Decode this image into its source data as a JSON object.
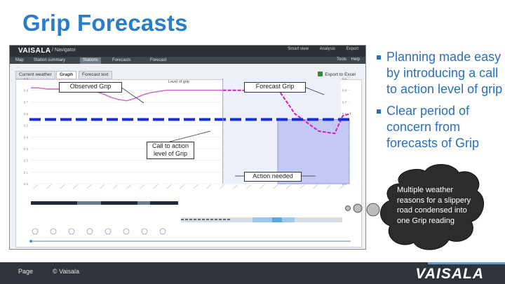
{
  "slide": {
    "title": "Grip Forecasts",
    "bullets": [
      "Planning made easy by introducing a call to action level of grip",
      "Clear period of concern from forecasts of Grip"
    ],
    "cloud_text": "Multiple weather reasons for a slippery road condensed into one Grip reading",
    "footer": {
      "page": "Page",
      "copyright": "© Vaisala",
      "logo": "VAISALA"
    }
  },
  "callouts": {
    "observed": "Observed Grip",
    "forecast": "Forecast Grip",
    "call_to_action": "Call to action level of Grip",
    "action_needed": "Action needed"
  },
  "app": {
    "logo": "VAISALA",
    "breadcrumb": "/ Navigator",
    "top_icons": [
      "Smart view",
      "Analysis",
      "Export"
    ],
    "nav_items": [
      "Map",
      "Station summary",
      "Stations",
      "Forecasts",
      "Forecast"
    ],
    "nav_active": 2,
    "nav_right": [
      "Tools",
      "Help"
    ],
    "tabs": [
      "Current weather",
      "Graph",
      "Forecast text"
    ],
    "tab_active": 1,
    "export_label": "Export to Excel",
    "chart_title": "Level of grip"
  },
  "colors": {
    "title": "#2a7dc8",
    "observed_line": "#d060c8",
    "forecast_line": "#d020b0",
    "threshold_line": "#1a2fd0",
    "action_fill": "#c4c9f4",
    "footer": "#2e343a"
  },
  "chart_data": {
    "type": "line",
    "title": "Level of grip",
    "ylim": [
      0,
      0.9
    ],
    "threshold": 0.55,
    "series": [
      {
        "values_note": "observed",
        "x": [
          0,
          1,
          2,
          3,
          4,
          5,
          6,
          7,
          8,
          9,
          10,
          11,
          12,
          13,
          14,
          15,
          16,
          17,
          18,
          19,
          20,
          21,
          22,
          23,
          24
        ],
        "values": [
          0.82,
          0.82,
          0.81,
          0.81,
          0.81,
          0.8,
          0.8,
          0.8,
          0.79,
          0.77,
          0.74,
          0.72,
          0.71,
          0.73,
          0.76,
          0.78,
          0.79,
          0.8,
          0.8,
          0.8,
          0.8,
          0.8,
          0.8,
          0.8,
          0.8
        ]
      },
      {
        "values_note": "forecast",
        "x": [
          24,
          26,
          27,
          29,
          30,
          31,
          32,
          33,
          34,
          35,
          36,
          37,
          38,
          39,
          40
        ],
        "values": [
          0.8,
          0.8,
          0.8,
          0.8,
          0.8,
          0.8,
          0.7,
          0.6,
          0.55,
          0.5,
          0.45,
          0.44,
          0.43,
          0.58,
          0.6
        ]
      }
    ],
    "forecast_start": 24,
    "action_window": [
      30,
      40
    ]
  }
}
